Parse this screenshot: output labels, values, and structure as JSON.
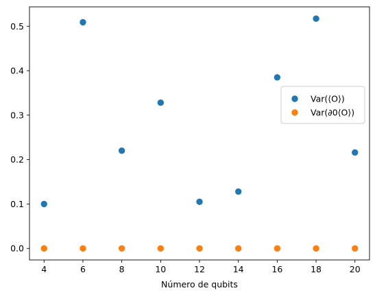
{
  "chart_data": {
    "type": "scatter",
    "xlabel": "Número de qubits",
    "ylabel": "",
    "title": "",
    "xlim": [
      3.25,
      20.75
    ],
    "ylim": [
      -0.0259,
      0.5436
    ],
    "xticks": [
      4,
      6,
      8,
      10,
      12,
      14,
      16,
      18,
      20
    ],
    "xtick_labels": [
      "4",
      "6",
      "8",
      "10",
      "12",
      "14",
      "16",
      "18",
      "20"
    ],
    "yticks": [
      0.0,
      0.1,
      0.2,
      0.3,
      0.4,
      0.5
    ],
    "ytick_labels": [
      "0.0",
      "0.1",
      "0.2",
      "0.3",
      "0.4",
      "0.5"
    ],
    "grid": false,
    "legend_position": "center-right",
    "series": [
      {
        "name": "Var(⟨O⟩)",
        "color": "#1f77b4",
        "x": [
          4,
          6,
          8,
          10,
          12,
          14,
          16,
          18,
          20
        ],
        "y": [
          0.1,
          0.509,
          0.22,
          0.328,
          0.105,
          0.128,
          0.385,
          0.517,
          0.216
        ]
      },
      {
        "name": "Var(∂0⟨O⟩)",
        "color": "#ff7f0e",
        "x": [
          4,
          6,
          8,
          10,
          12,
          14,
          16,
          18,
          20
        ],
        "y": [
          0.0,
          0.0,
          0.0,
          0.0,
          0.0,
          0.0,
          0.0,
          0.0,
          0.0
        ]
      }
    ]
  }
}
